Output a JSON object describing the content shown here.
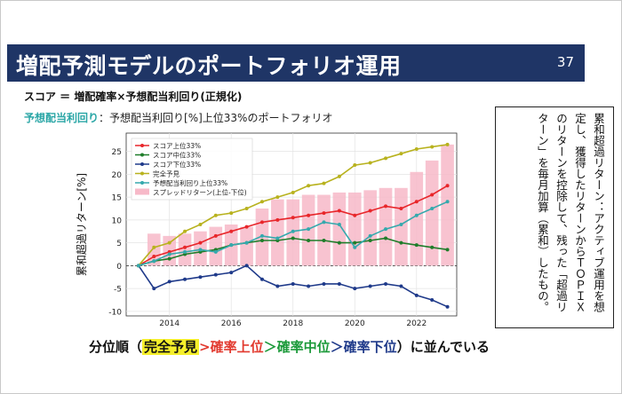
{
  "slide": {
    "title": "増配予測モデルのポートフォリオ運用",
    "page_number": "37",
    "score_formula": "スコア ＝ 増配確率×予想配当利回り(正規化)",
    "legend_note_key": "予想配当利回り",
    "legend_note_rest": "：予想配当利回り[%]上位33%のポートフォリオ",
    "note": "累和超過リターン：アクティブ運用を想定し、獲得したリターンからＴＯＰＩＸのリターンを控除して、残った「超過リターン」を毎月加算（累和）したもの。",
    "bottom": {
      "prefix": "分位順（",
      "perfect": "完全予見",
      "sep1": ">",
      "upper": "確率上位",
      "sep2": "＞",
      "middle": "確率中位",
      "sep3": "＞",
      "lower": "確率下位",
      "suffix": "）に並んでいる"
    }
  },
  "chart_data": {
    "type": "line",
    "ylabel": "累和超過リターン[%]",
    "xlabel": "",
    "xlim": [
      2012.6,
      2023.3
    ],
    "ylim": [
      -11,
      29
    ],
    "x_ticks": [
      "2014",
      "2016",
      "2018",
      "2020",
      "2022"
    ],
    "x_tick_values": [
      2014,
      2016,
      2018,
      2020,
      2022
    ],
    "y_ticks": [
      "-10",
      "-5",
      "0",
      "5",
      "10",
      "15",
      "20",
      "25"
    ],
    "y_tick_values": [
      -10,
      -5,
      0,
      5,
      10,
      15,
      20,
      25
    ],
    "grid": true,
    "legend_position": "top-left",
    "x": [
      2013.0,
      2013.5,
      2014.0,
      2014.5,
      2015.0,
      2015.5,
      2016.0,
      2016.5,
      2017.0,
      2017.5,
      2018.0,
      2018.5,
      2019.0,
      2019.5,
      2020.0,
      2020.5,
      2021.0,
      2021.5,
      2022.0,
      2022.5,
      2023.0
    ],
    "series": [
      {
        "name": "スコア上位33%",
        "color": "#e8262a",
        "marker": "dot",
        "values": [
          0,
          2.0,
          3.0,
          4.0,
          5.0,
          6.5,
          7.5,
          8.5,
          9.5,
          10.0,
          10.5,
          11.0,
          11.5,
          12.0,
          11.0,
          12.0,
          13.0,
          12.5,
          14.0,
          15.5,
          17.5
        ]
      },
      {
        "name": "スコア中位33%",
        "color": "#1f7d2a",
        "marker": "dot",
        "values": [
          0,
          1.0,
          1.5,
          2.5,
          3.0,
          3.5,
          4.5,
          5.0,
          5.5,
          5.5,
          6.0,
          5.5,
          5.5,
          5.0,
          5.0,
          5.5,
          6.0,
          5.0,
          4.5,
          4.0,
          3.5
        ]
      },
      {
        "name": "スコア下位33%",
        "color": "#1f3a8a",
        "marker": "dot",
        "values": [
          0,
          -5.0,
          -3.5,
          -3.0,
          -2.5,
          -2.0,
          -1.5,
          0.0,
          -3.0,
          -4.5,
          -4.0,
          -4.5,
          -4.0,
          -4.0,
          -5.0,
          -4.5,
          -4.0,
          -4.5,
          -6.5,
          -7.5,
          -9.0
        ]
      },
      {
        "name": "完全予見",
        "color": "#b8b21e",
        "marker": "dot",
        "values": [
          0,
          4.0,
          5.0,
          7.5,
          9.0,
          11.0,
          11.5,
          12.5,
          14.0,
          15.0,
          16.0,
          17.5,
          18.0,
          19.5,
          22.0,
          22.5,
          23.5,
          24.5,
          25.5,
          26.0,
          26.5
        ]
      },
      {
        "name": "予想配当利回り上位33%",
        "color": "#35a9ad",
        "marker": "dot",
        "values": [
          0,
          1.0,
          2.5,
          3.0,
          3.5,
          3.0,
          4.5,
          5.0,
          6.5,
          6.0,
          7.5,
          8.0,
          9.5,
          9.0,
          4.0,
          6.5,
          8.0,
          9.0,
          11.0,
          12.5,
          14.0
        ]
      },
      {
        "name": "スプレッドリターン(上位-下位)",
        "color": "#f7b9c8",
        "type": "bar",
        "values": [
          0,
          7.0,
          6.5,
          7.0,
          7.5,
          8.5,
          9.0,
          8.5,
          12.5,
          14.5,
          14.5,
          15.5,
          15.5,
          16.0,
          16.0,
          16.5,
          17.0,
          17.0,
          20.5,
          23.0,
          26.5
        ]
      }
    ]
  }
}
